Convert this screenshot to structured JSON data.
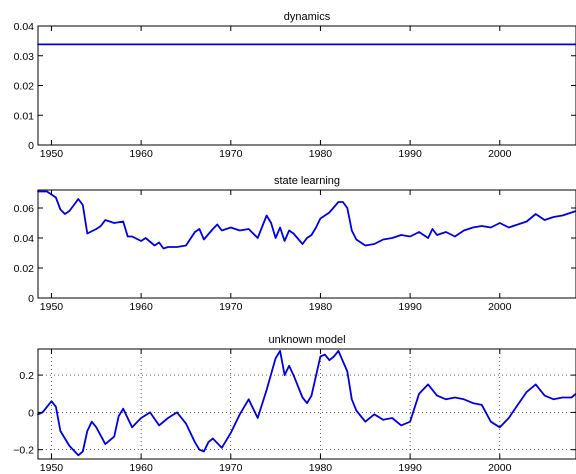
{
  "chart_data": [
    {
      "type": "line",
      "title": "dynamics",
      "xlim": [
        1948.5,
        2008.5
      ],
      "ylim": [
        0,
        0.04
      ],
      "xticks": [
        1950,
        1960,
        1970,
        1980,
        1990,
        2000
      ],
      "yticks": [
        0,
        0.01,
        0.02,
        0.03,
        0.04
      ],
      "ytick_labels": [
        "0",
        "0.01",
        "0.02",
        "0.03",
        "0.04"
      ],
      "grid": false,
      "series": [
        {
          "color": "#0000e6",
          "x": [
            1948.5,
            2008.5
          ],
          "y": [
            0.0338,
            0.0338
          ]
        }
      ]
    },
    {
      "type": "line",
      "title": "state learning",
      "xlim": [
        1948.5,
        2008.5
      ],
      "ylim": [
        0,
        0.072
      ],
      "xticks": [
        1950,
        1960,
        1970,
        1980,
        1990,
        2000
      ],
      "yticks": [
        0,
        0.02,
        0.04,
        0.06
      ],
      "ytick_labels": [
        "0",
        "0.02",
        "0.04",
        "0.06"
      ],
      "grid": false,
      "series": [
        {
          "color": "#0000e6",
          "x": [
            1948.5,
            1949.5,
            1950.5,
            1951.0,
            1951.5,
            1952.0,
            1952.5,
            1953.0,
            1953.5,
            1954.0,
            1955.0,
            1955.5,
            1956.0,
            1957.0,
            1958.0,
            1958.5,
            1959.0,
            1960.0,
            1960.5,
            1961.5,
            1962.0,
            1962.5,
            1963.0,
            1964.0,
            1965.0,
            1966.0,
            1966.5,
            1967.0,
            1968.0,
            1968.5,
            1969.0,
            1970.0,
            1971.0,
            1972.0,
            1973.0,
            1974.0,
            1974.5,
            1975.0,
            1975.5,
            1976.0,
            1976.5,
            1977.0,
            1978.0,
            1978.5,
            1979.0,
            1979.5,
            1980.0,
            1981.0,
            1982.0,
            1982.5,
            1983.0,
            1983.5,
            1984.0,
            1985.0,
            1986.0,
            1987.0,
            1988.0,
            1989.0,
            1990.0,
            1991.0,
            1992.0,
            1992.5,
            1993.0,
            1994.0,
            1995.0,
            1996.0,
            1997.0,
            1998.0,
            1999.0,
            2000.0,
            2001.0,
            2002.0,
            2003.0,
            2004.0,
            2005.0,
            2006.0,
            2007.0,
            2008.5
          ],
          "y": [
            0.071,
            0.071,
            0.067,
            0.059,
            0.056,
            0.058,
            0.062,
            0.066,
            0.062,
            0.043,
            0.046,
            0.048,
            0.052,
            0.05,
            0.051,
            0.041,
            0.041,
            0.038,
            0.04,
            0.035,
            0.037,
            0.033,
            0.034,
            0.034,
            0.035,
            0.044,
            0.046,
            0.039,
            0.046,
            0.049,
            0.045,
            0.047,
            0.045,
            0.046,
            0.04,
            0.055,
            0.05,
            0.04,
            0.047,
            0.038,
            0.045,
            0.043,
            0.036,
            0.04,
            0.042,
            0.047,
            0.053,
            0.057,
            0.064,
            0.064,
            0.06,
            0.045,
            0.039,
            0.035,
            0.036,
            0.039,
            0.04,
            0.042,
            0.041,
            0.044,
            0.04,
            0.046,
            0.042,
            0.044,
            0.041,
            0.045,
            0.047,
            0.048,
            0.047,
            0.05,
            0.047,
            0.049,
            0.051,
            0.056,
            0.052,
            0.054,
            0.055,
            0.058
          ]
        }
      ]
    },
    {
      "type": "line",
      "title": "unknown model",
      "xlim": [
        1948.5,
        2008.5
      ],
      "ylim": [
        -0.25,
        0.34
      ],
      "xticks": [
        1950,
        1960,
        1970,
        1980,
        1990,
        2000
      ],
      "yticks": [
        -0.2,
        0,
        0.2
      ],
      "ytick_labels": [
        "−0.2",
        "0",
        "0.2"
      ],
      "grid": true,
      "series": [
        {
          "color": "#0000e6",
          "x": [
            1948.5,
            1949.0,
            1950.0,
            1950.5,
            1951.0,
            1952.0,
            1953.0,
            1953.5,
            1954.0,
            1954.5,
            1955.0,
            1956.0,
            1957.0,
            1957.5,
            1958.0,
            1959.0,
            1960.0,
            1961.0,
            1962.0,
            1963.0,
            1964.0,
            1965.0,
            1966.0,
            1966.5,
            1967.0,
            1967.5,
            1968.0,
            1969.0,
            1970.0,
            1971.0,
            1972.0,
            1973.0,
            1974.0,
            1975.0,
            1975.5,
            1976.0,
            1976.5,
            1977.0,
            1978.0,
            1978.5,
            1979.0,
            1980.0,
            1980.5,
            1981.0,
            1981.5,
            1982.0,
            1983.0,
            1983.5,
            1984.0,
            1985.0,
            1986.0,
            1987.0,
            1988.0,
            1989.0,
            1990.0,
            1991.0,
            1992.0,
            1993.0,
            1994.0,
            1995.0,
            1996.0,
            1997.0,
            1998.0,
            1999.0,
            2000.0,
            2001.0,
            2002.0,
            2003.0,
            2004.0,
            2005.0,
            2006.0,
            2007.0,
            2008.0,
            2008.5
          ],
          "y": [
            -0.01,
            0.0,
            0.06,
            0.03,
            -0.1,
            -0.18,
            -0.23,
            -0.21,
            -0.1,
            -0.05,
            -0.08,
            -0.17,
            -0.13,
            -0.02,
            0.02,
            -0.08,
            -0.03,
            0.0,
            -0.07,
            -0.03,
            0.0,
            -0.06,
            -0.16,
            -0.2,
            -0.21,
            -0.16,
            -0.14,
            -0.19,
            -0.11,
            -0.01,
            0.07,
            -0.03,
            0.12,
            0.29,
            0.33,
            0.2,
            0.25,
            0.2,
            0.08,
            0.05,
            0.09,
            0.3,
            0.31,
            0.28,
            0.3,
            0.33,
            0.22,
            0.07,
            0.01,
            -0.05,
            -0.01,
            -0.04,
            -0.03,
            -0.07,
            -0.05,
            0.1,
            0.15,
            0.09,
            0.07,
            0.08,
            0.07,
            0.05,
            0.04,
            -0.05,
            -0.08,
            -0.03,
            0.04,
            0.11,
            0.15,
            0.09,
            0.07,
            0.08,
            0.08,
            0.1
          ]
        }
      ]
    }
  ]
}
